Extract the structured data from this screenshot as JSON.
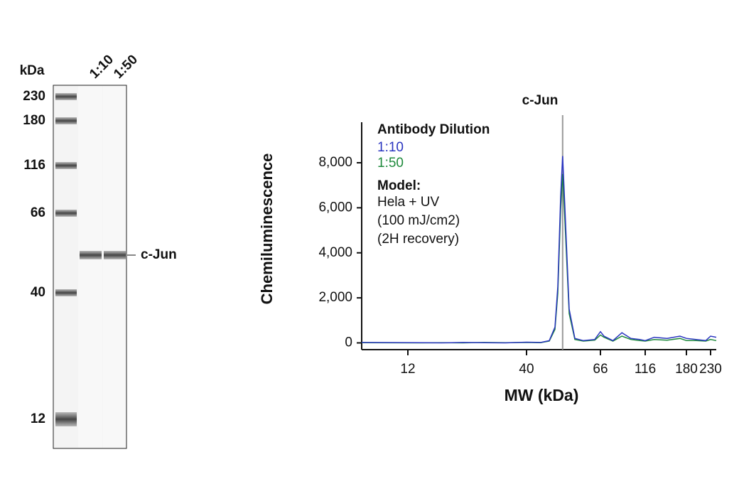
{
  "gel": {
    "unit_label": "kDa",
    "lanes": [
      "1:10",
      "1:50"
    ],
    "ladder": [
      "230",
      "180",
      "116",
      "66",
      "40",
      "12"
    ],
    "band_label": "c-Jun"
  },
  "chart_data": {
    "type": "line",
    "annotation": "c-Jun",
    "annotation_x": 52.7,
    "ylabel": "Chemiluminescence",
    "xlabel": "MW (kDa)",
    "legend_title": "Antibody Dilution",
    "notes_title": "Model:",
    "notes": [
      "Hela + UV",
      "(100 mJ/cm2)",
      "(2H recovery)"
    ],
    "x": [
      8,
      15,
      20,
      25,
      30,
      35,
      40,
      45,
      48,
      50,
      51,
      52,
      52.7,
      53.5,
      55,
      57,
      60,
      64,
      66,
      70,
      80,
      90,
      100,
      110,
      116,
      130,
      150,
      170,
      180,
      200,
      220,
      230,
      250
    ],
    "series": [
      {
        "name": "1:10",
        "color": "#2a35c0",
        "values": [
          20,
          10,
          0,
          20,
          10,
          0,
          30,
          20,
          100,
          700,
          2500,
          6500,
          8300,
          6000,
          1500,
          200,
          100,
          150,
          500,
          300,
          100,
          450,
          200,
          150,
          100,
          250,
          200,
          300,
          200,
          150,
          100,
          300,
          250
        ]
      },
      {
        "name": "1:50",
        "color": "#1f8a3c",
        "values": [
          10,
          0,
          10,
          0,
          20,
          10,
          20,
          10,
          80,
          600,
          2200,
          5900,
          7500,
          5400,
          1300,
          150,
          80,
          120,
          350,
          250,
          80,
          300,
          150,
          100,
          80,
          150,
          120,
          200,
          100,
          100,
          80,
          150,
          100
        ]
      }
    ],
    "xlim": [
      8,
      250
    ],
    "xticks": [
      12,
      40,
      66,
      116,
      180,
      230
    ],
    "ylim": [
      -300,
      9800
    ],
    "yticks": [
      {
        "value": 0,
        "label": "0"
      },
      {
        "value": 2000,
        "label": "2,000"
      },
      {
        "value": 4000,
        "label": "4,000"
      },
      {
        "value": 6000,
        "label": "6,000"
      },
      {
        "value": 8000,
        "label": "8,000"
      }
    ]
  }
}
